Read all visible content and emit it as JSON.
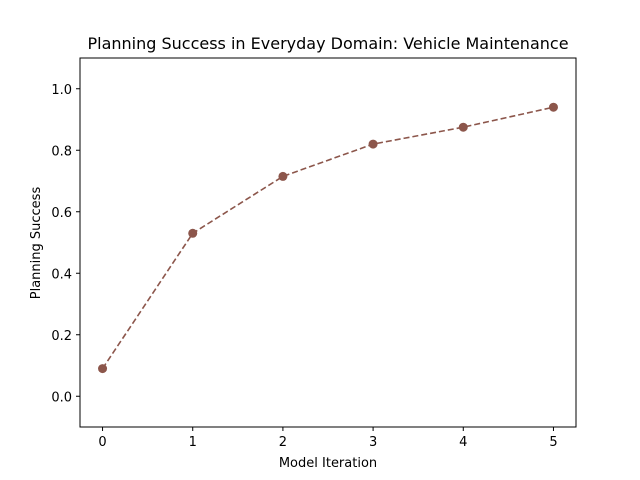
{
  "chart_data": {
    "type": "line",
    "title": "Planning Success in Everyday Domain: Vehicle Maintenance",
    "xlabel": "Model Iteration",
    "ylabel": "Planning Success",
    "x": [
      0,
      1,
      2,
      3,
      4,
      5
    ],
    "series": [
      {
        "values": [
          0.09,
          0.53,
          0.715,
          0.82,
          0.875,
          0.94
        ]
      }
    ],
    "xlim": [
      -0.25,
      5.25
    ],
    "ylim": [
      -0.1,
      1.1
    ],
    "xticks": [
      "0",
      "1",
      "2",
      "3",
      "4",
      "5"
    ],
    "yticks": [
      "0.0",
      "0.2",
      "0.4",
      "0.6",
      "0.8",
      "1.0"
    ],
    "grid": false,
    "line_style": "dashed",
    "marker": "circle",
    "color": "#8c564b"
  }
}
